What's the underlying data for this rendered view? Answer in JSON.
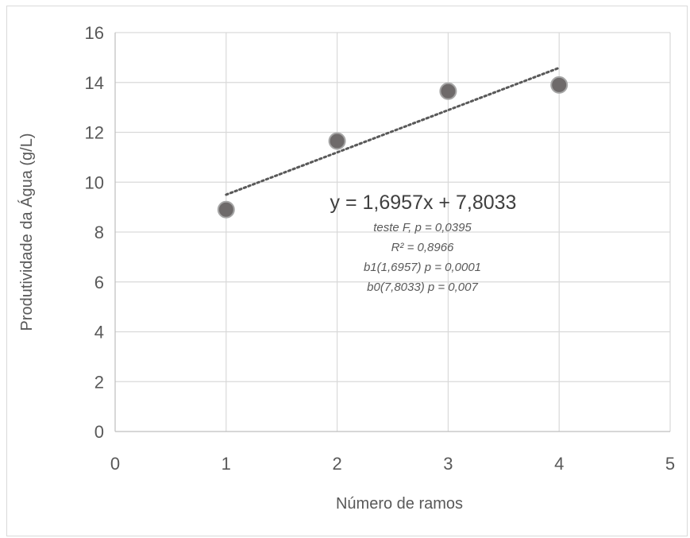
{
  "chart_data": {
    "type": "scatter",
    "title": "",
    "xlabel": "Número de ramos",
    "ylabel": "Produtividade da Água (g/L)",
    "xlim": [
      0,
      5
    ],
    "ylim": [
      0,
      16
    ],
    "x_ticks": [
      0,
      1,
      2,
      3,
      4,
      5
    ],
    "y_ticks": [
      0,
      2,
      4,
      6,
      8,
      10,
      12,
      14,
      16
    ],
    "grid": "vertical and horizontal major gridlines",
    "legend": "none",
    "series": [
      {
        "x": [
          1,
          2,
          3,
          4
        ],
        "y": [
          8.9,
          11.65,
          13.65,
          13.9
        ],
        "marker_color": "#6e6a6a",
        "marker_edge_color": "#a6a6a6"
      }
    ],
    "trendline": {
      "type": "linear",
      "slope": 1.6957,
      "intercept": 7.8033,
      "x_range": [
        1,
        4
      ],
      "style": "dotted",
      "color": "#595959"
    },
    "annotations": {
      "equation": "y = 1,6957x + 7,8033",
      "stats": [
        "teste F, p = 0,0395",
        "R² = 0,8966",
        "b1(1,6957) p = 0,0001",
        "b0(7,8033) p = 0,007"
      ]
    }
  }
}
